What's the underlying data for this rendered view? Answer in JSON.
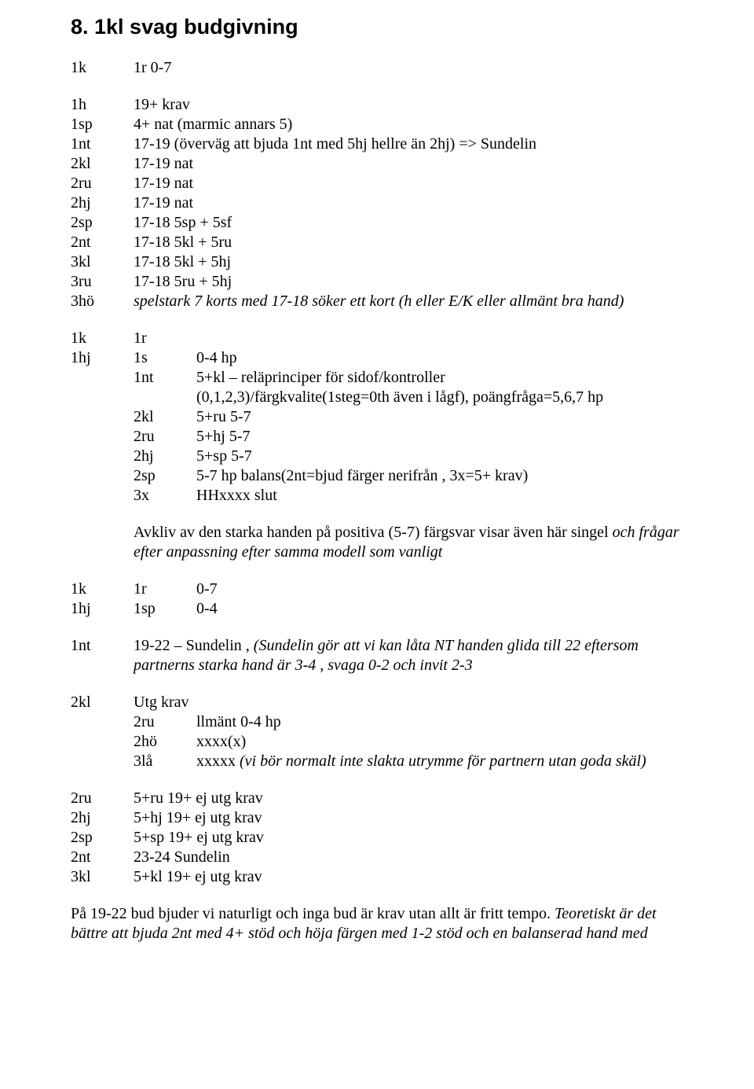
{
  "heading": "8. 1kl svag budgivning",
  "sectionA": [
    {
      "c1": "1k",
      "c2": "1r 0-7",
      "c3": ""
    }
  ],
  "sectionB": [
    {
      "c1": "1h",
      "c2": "19+ krav"
    },
    {
      "c1": "1sp",
      "c2": "4+ nat (marmic annars 5)"
    },
    {
      "c1": "1nt",
      "c2": "17-19 (överväg att bjuda 1nt med 5hj hellre än 2hj) => Sundelin"
    },
    {
      "c1": "2kl",
      "c2": "17-19 nat"
    },
    {
      "c1": "2ru",
      "c2": "17-19 nat"
    },
    {
      "c1": "2hj",
      "c2": "17-19 nat"
    },
    {
      "c1": "2sp",
      "c2": "17-18 5sp + 5sf"
    },
    {
      "c1": "2nt",
      "c2": "17-18  5kl + 5ru"
    },
    {
      "c1": "3kl",
      "c2": "17-18 5kl + 5hj"
    },
    {
      "c1": "3ru",
      "c2": "17-18 5ru + 5hj"
    },
    {
      "c1": "3hö",
      "c2pre": "spelstark 7 korts med 17-18 söker ett kort (h eller E/K eller allmänt bra hand)",
      "ital": true
    }
  ],
  "sectionC_head": [
    {
      "c1": "1k",
      "c2": "1r",
      "c3": ""
    },
    {
      "c1": "1hj",
      "c2": "1s",
      "c3": "0-4 hp"
    }
  ],
  "sectionC_inner": [
    {
      "c2": "1nt",
      "c3": "5+kl – reläprinciper för sidof/kontroller"
    },
    {
      "c2": "",
      "c3": "(0,1,2,3)/färgkvalite(1steg=0th även i lågf), poängfråga=5,6,7 hp"
    },
    {
      "c2": "2kl",
      "c3": "5+ru 5-7"
    },
    {
      "c2": "2ru",
      "c3": "5+hj 5-7"
    },
    {
      "c2": "2hj",
      "c3": "5+sp 5-7"
    },
    {
      "c2": "2sp",
      "c3": "5-7 hp balans(2nt=bjud färger nerifrån , 3x=5+ krav)"
    },
    {
      "c2": "3x",
      "c3": "HHxxxx slut"
    }
  ],
  "para1_a": "Avkliv av den starka handen på positiva (5-7) färgsvar  visar även här singel ",
  "para1_b": "och frågar efter anpassning efter samma modell som vanligt",
  "sectionD": [
    {
      "c1": "1k",
      "c2": "1r",
      "c3": "0-7"
    },
    {
      "c1": "1hj",
      "c2": "1sp",
      "c3": "0-4"
    }
  ],
  "sectionE": {
    "c1": "1nt",
    "line1_a": "19-22 – Sundelin , ",
    "line1_b": "(Sundelin gör att vi kan låta NT handen glida till 22 eftersom partnerns starka hand är 3-4 , svaga 0-2 och invit 2-3"
  },
  "sectionF_head": {
    "c1": "2kl",
    "c2": "Utg krav"
  },
  "sectionF_inner": [
    {
      "c2": "2ru",
      "c3": "llmänt 0-4 hp"
    },
    {
      "c2": "2hö",
      "c3": "xxxx(x)"
    },
    {
      "c2": "3lå",
      "c3a": "xxxxx ",
      "c3b": "(vi bör normalt inte slakta utrymme för partnern utan goda skäl)"
    }
  ],
  "sectionG": [
    {
      "c1": "2ru",
      "c2": "5+ru 19+ ej utg krav"
    },
    {
      "c1": "2hj",
      "c2": "5+hj 19+ ej utg krav"
    },
    {
      "c1": "2sp",
      "c2": "5+sp 19+ ej utg krav"
    },
    {
      "c1": "2nt",
      "c2": "23-24 Sundelin"
    },
    {
      "c1": "3kl",
      "c2": "5+kl 19+ ej utg krav"
    }
  ],
  "finalPara_a": "På 19-22 bud bjuder vi naturligt och inga bud är krav utan allt är fritt tempo. ",
  "finalPara_b": "Teoretiskt är det bättre att bjuda 2nt med 4+ stöd och höja färgen med 1-2 stöd och en balanserad hand med"
}
